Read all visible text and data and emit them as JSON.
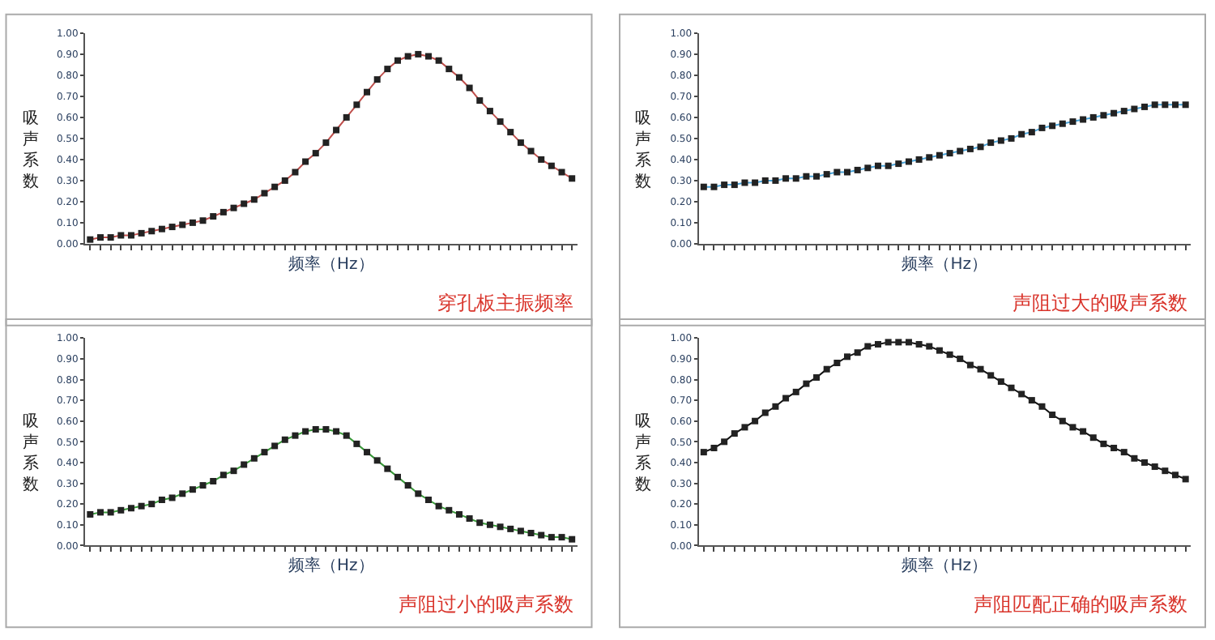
{
  "chart_data": [
    {
      "type": "line",
      "title": "穿孔板主振频率",
      "xlabel": "频率（Hz）",
      "ylabel": "吸声系数",
      "marker": "square",
      "grid": false,
      "categories": [
        null,
        null,
        null,
        null,
        null,
        null,
        null,
        null,
        null,
        null,
        null,
        null,
        null,
        null,
        null,
        null,
        null,
        null,
        null,
        null,
        null,
        null,
        null,
        null,
        null,
        null,
        null,
        null,
        null,
        null,
        null,
        null,
        null,
        null,
        null,
        null,
        null,
        null,
        null,
        null,
        null,
        null,
        null,
        null,
        null,
        null,
        null,
        null
      ],
      "series": [
        {
          "color": "#c0504d",
          "values": [
            0.02,
            0.03,
            0.03,
            0.04,
            0.04,
            0.05,
            0.06,
            0.07,
            0.08,
            0.09,
            0.1,
            0.11,
            0.13,
            0.15,
            0.17,
            0.19,
            0.21,
            0.24,
            0.27,
            0.3,
            0.34,
            0.39,
            0.43,
            0.48,
            0.54,
            0.6,
            0.66,
            0.72,
            0.78,
            0.83,
            0.87,
            0.89,
            0.9,
            0.89,
            0.87,
            0.83,
            0.79,
            0.74,
            0.68,
            0.63,
            0.58,
            0.53,
            0.48,
            0.44,
            0.4,
            0.37,
            0.34,
            0.31
          ]
        }
      ],
      "ylim": [
        0,
        1
      ],
      "yticks": [
        {
          "value": 0,
          "label": "0.00"
        },
        {
          "value": 0.1,
          "label": "0.10"
        },
        {
          "value": 0.2,
          "label": "0.20"
        },
        {
          "value": 0.3,
          "label": "0.30"
        },
        {
          "value": 0.4,
          "label": "0.40"
        },
        {
          "value": 0.5,
          "label": "0.50"
        },
        {
          "value": 0.6,
          "label": "0.60"
        },
        {
          "value": 0.7,
          "label": "0.70"
        },
        {
          "value": 0.8,
          "label": "0.80"
        },
        {
          "value": 0.9,
          "label": "0.90"
        },
        {
          "value": 1,
          "label": "1.00"
        }
      ]
    },
    {
      "type": "line",
      "title": "声阻过大的吸声系数",
      "xlabel": "频率（Hz）",
      "ylabel": "吸声系数",
      "marker": "square",
      "grid": false,
      "categories": [
        null,
        null,
        null,
        null,
        null,
        null,
        null,
        null,
        null,
        null,
        null,
        null,
        null,
        null,
        null,
        null,
        null,
        null,
        null,
        null,
        null,
        null,
        null,
        null,
        null,
        null,
        null,
        null,
        null,
        null,
        null,
        null,
        null,
        null,
        null,
        null,
        null,
        null,
        null,
        null,
        null,
        null,
        null,
        null,
        null,
        null,
        null,
        null
      ],
      "series": [
        {
          "color": "#4aa3d8",
          "values": [
            0.27,
            0.27,
            0.28,
            0.28,
            0.29,
            0.29,
            0.3,
            0.3,
            0.31,
            0.31,
            0.32,
            0.32,
            0.33,
            0.34,
            0.34,
            0.35,
            0.36,
            0.37,
            0.37,
            0.38,
            0.39,
            0.4,
            0.41,
            0.42,
            0.43,
            0.44,
            0.45,
            0.46,
            0.48,
            0.49,
            0.5,
            0.52,
            0.53,
            0.55,
            0.56,
            0.57,
            0.58,
            0.59,
            0.6,
            0.61,
            0.62,
            0.63,
            0.64,
            0.65,
            0.66,
            0.66,
            0.66,
            0.66
          ]
        }
      ],
      "ylim": [
        0,
        1
      ],
      "yticks": [
        {
          "value": 0,
          "label": "0.00"
        },
        {
          "value": 0.1,
          "label": "0.10"
        },
        {
          "value": 0.2,
          "label": "0.20"
        },
        {
          "value": 0.3,
          "label": "0.30"
        },
        {
          "value": 0.4,
          "label": "0.40"
        },
        {
          "value": 0.5,
          "label": "0.50"
        },
        {
          "value": 0.6,
          "label": "0.60"
        },
        {
          "value": 0.7,
          "label": "0.70"
        },
        {
          "value": 0.8,
          "label": "0.80"
        },
        {
          "value": 0.9,
          "label": "0.90"
        },
        {
          "value": 1,
          "label": "1.00"
        }
      ]
    },
    {
      "type": "line",
      "title": "声阻过小的吸声系数",
      "xlabel": "频率（Hz）",
      "ylabel": "吸声系数",
      "marker": "square",
      "grid": false,
      "categories": [
        null,
        null,
        null,
        null,
        null,
        null,
        null,
        null,
        null,
        null,
        null,
        null,
        null,
        null,
        null,
        null,
        null,
        null,
        null,
        null,
        null,
        null,
        null,
        null,
        null,
        null,
        null,
        null,
        null,
        null,
        null,
        null,
        null,
        null,
        null,
        null,
        null,
        null,
        null,
        null,
        null,
        null,
        null,
        null,
        null,
        null,
        null,
        null
      ],
      "series": [
        {
          "color": "#3a9a3a",
          "values": [
            0.15,
            0.16,
            0.16,
            0.17,
            0.18,
            0.19,
            0.2,
            0.22,
            0.23,
            0.25,
            0.27,
            0.29,
            0.31,
            0.34,
            0.36,
            0.39,
            0.42,
            0.45,
            0.48,
            0.51,
            0.53,
            0.55,
            0.56,
            0.56,
            0.55,
            0.53,
            0.49,
            0.45,
            0.41,
            0.37,
            0.33,
            0.29,
            0.25,
            0.22,
            0.19,
            0.17,
            0.15,
            0.13,
            0.11,
            0.1,
            0.09,
            0.08,
            0.07,
            0.06,
            0.05,
            0.04,
            0.04,
            0.03
          ]
        }
      ],
      "ylim": [
        0,
        1
      ],
      "yticks": [
        {
          "value": 0,
          "label": "0.00"
        },
        {
          "value": 0.1,
          "label": "0.10"
        },
        {
          "value": 0.2,
          "label": "0.20"
        },
        {
          "value": 0.3,
          "label": "0.30"
        },
        {
          "value": 0.4,
          "label": "0.40"
        },
        {
          "value": 0.5,
          "label": "0.50"
        },
        {
          "value": 0.6,
          "label": "0.60"
        },
        {
          "value": 0.7,
          "label": "0.70"
        },
        {
          "value": 0.8,
          "label": "0.80"
        },
        {
          "value": 0.9,
          "label": "0.90"
        },
        {
          "value": 1,
          "label": "1.00"
        }
      ]
    },
    {
      "type": "line",
      "title": "声阻匹配正确的吸声系数",
      "xlabel": "频率（Hz）",
      "ylabel": "吸声系数",
      "marker": "square",
      "grid": false,
      "categories": [
        null,
        null,
        null,
        null,
        null,
        null,
        null,
        null,
        null,
        null,
        null,
        null,
        null,
        null,
        null,
        null,
        null,
        null,
        null,
        null,
        null,
        null,
        null,
        null,
        null,
        null,
        null,
        null,
        null,
        null,
        null,
        null,
        null,
        null,
        null,
        null,
        null,
        null,
        null,
        null,
        null,
        null,
        null,
        null,
        null,
        null,
        null,
        null
      ],
      "series": [
        {
          "color": "#111111",
          "values": [
            0.45,
            0.47,
            0.5,
            0.54,
            0.57,
            0.6,
            0.64,
            0.67,
            0.71,
            0.74,
            0.78,
            0.81,
            0.85,
            0.88,
            0.91,
            0.93,
            0.96,
            0.97,
            0.98,
            0.98,
            0.98,
            0.97,
            0.96,
            0.94,
            0.92,
            0.9,
            0.87,
            0.85,
            0.82,
            0.79,
            0.76,
            0.73,
            0.7,
            0.67,
            0.63,
            0.6,
            0.57,
            0.55,
            0.52,
            0.49,
            0.47,
            0.45,
            0.42,
            0.4,
            0.38,
            0.36,
            0.34,
            0.32
          ]
        }
      ],
      "ylim": [
        0,
        1
      ],
      "yticks": [
        {
          "value": 0,
          "label": "0.00"
        },
        {
          "value": 0.1,
          "label": "0.10"
        },
        {
          "value": 0.2,
          "label": "0.20"
        },
        {
          "value": 0.3,
          "label": "0.30"
        },
        {
          "value": 0.4,
          "label": "0.40"
        },
        {
          "value": 0.5,
          "label": "0.50"
        },
        {
          "value": 0.6,
          "label": "0.60"
        },
        {
          "value": 0.7,
          "label": "0.70"
        },
        {
          "value": 0.8,
          "label": "0.80"
        },
        {
          "value": 0.9,
          "label": "0.90"
        },
        {
          "value": 1,
          "label": "1.00"
        }
      ]
    }
  ]
}
